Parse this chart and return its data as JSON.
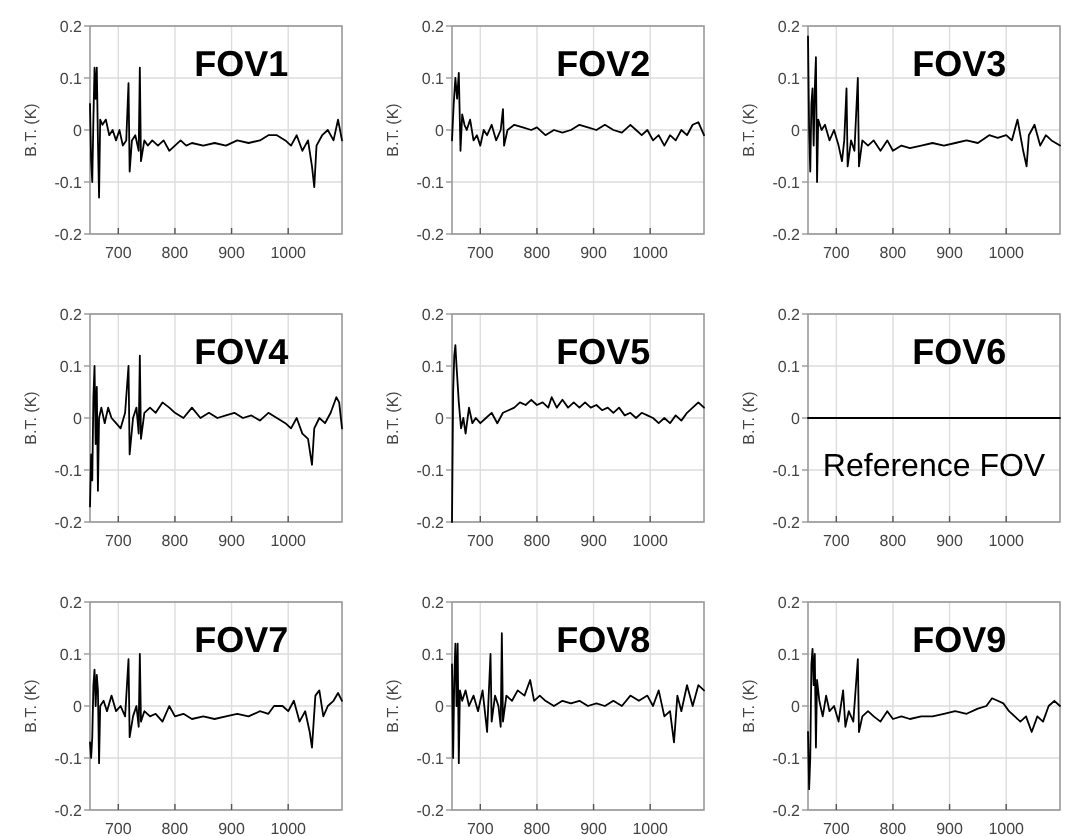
{
  "chart_data": [
    {
      "type": "line",
      "title": "FOV1",
      "ylabel": "B.T. (K)",
      "xlim": [
        650,
        1095
      ],
      "xticks": [
        700,
        800,
        900,
        1000
      ],
      "ylim": [
        -0.2,
        0.2
      ],
      "yticks": [
        -0.2,
        -0.1,
        0,
        0.1,
        0.2
      ],
      "grid": true,
      "series": [
        {
          "color": "#000000",
          "x": [
            650,
            652,
            654,
            656,
            658,
            660,
            662,
            664,
            666,
            668,
            672,
            678,
            684,
            690,
            696,
            702,
            708,
            714,
            718,
            720,
            724,
            730,
            736,
            738,
            740,
            746,
            752,
            760,
            770,
            780,
            790,
            800,
            810,
            820,
            830,
            850,
            870,
            890,
            910,
            930,
            950,
            965,
            980,
            995,
            1005,
            1015,
            1025,
            1035,
            1042,
            1046,
            1050,
            1060,
            1070,
            1080,
            1088,
            1095
          ],
          "values": [
            0.05,
            -0.06,
            -0.1,
            0.02,
            0.12,
            0.06,
            0.12,
            -0.02,
            -0.13,
            0.02,
            0.01,
            0.02,
            -0.01,
            0,
            -0.02,
            0,
            -0.03,
            -0.02,
            0.09,
            -0.08,
            -0.02,
            -0.01,
            -0.04,
            0.12,
            -0.06,
            -0.02,
            -0.03,
            -0.02,
            -0.03,
            -0.02,
            -0.04,
            -0.03,
            -0.02,
            -0.03,
            -0.025,
            -0.03,
            -0.025,
            -0.03,
            -0.02,
            -0.025,
            -0.02,
            -0.01,
            -0.01,
            -0.02,
            -0.03,
            -0.01,
            -0.04,
            -0.02,
            -0.07,
            -0.11,
            -0.03,
            -0.01,
            0,
            -0.02,
            0.02,
            -0.02
          ]
        }
      ]
    },
    {
      "type": "line",
      "title": "FOV2",
      "ylabel": "B.T. (K)",
      "xlim": [
        650,
        1095
      ],
      "xticks": [
        700,
        800,
        900,
        1000
      ],
      "ylim": [
        -0.2,
        0.2
      ],
      "yticks": [
        -0.2,
        -0.1,
        0,
        0.1,
        0.2
      ],
      "grid": true,
      "series": [
        {
          "color": "#000000",
          "x": [
            650,
            653,
            656,
            659,
            662,
            665,
            668,
            672,
            676,
            682,
            688,
            694,
            700,
            706,
            712,
            720,
            728,
            736,
            740,
            742,
            748,
            760,
            775,
            790,
            800,
            815,
            830,
            845,
            860,
            875,
            890,
            905,
            920,
            935,
            950,
            965,
            975,
            985,
            995,
            1005,
            1015,
            1025,
            1035,
            1045,
            1055,
            1065,
            1075,
            1085,
            1095
          ],
          "values": [
            -0.02,
            0.05,
            0.1,
            0.06,
            0.11,
            -0.04,
            0.03,
            0.01,
            0,
            0.02,
            -0.02,
            -0.01,
            -0.03,
            0,
            -0.01,
            0.01,
            -0.02,
            0,
            0.04,
            -0.03,
            0,
            0.01,
            0.005,
            0,
            0.005,
            -0.01,
            0,
            -0.005,
            0,
            0.01,
            0.005,
            0,
            0.01,
            0,
            -0.005,
            0.01,
            0,
            -0.01,
            0,
            -0.02,
            -0.01,
            -0.03,
            -0.01,
            -0.02,
            0,
            -0.01,
            0.01,
            0.015,
            -0.01
          ]
        }
      ]
    },
    {
      "type": "line",
      "title": "FOV3",
      "ylabel": "B.T. (K)",
      "xlim": [
        650,
        1095
      ],
      "xticks": [
        700,
        800,
        900,
        1000
      ],
      "ylim": [
        -0.2,
        0.2
      ],
      "yticks": [
        -0.2,
        -0.1,
        0,
        0.1,
        0.2
      ],
      "grid": true,
      "series": [
        {
          "color": "#000000",
          "x": [
            650,
            652,
            654,
            656,
            658,
            660,
            662,
            664,
            666,
            668,
            674,
            680,
            688,
            696,
            704,
            710,
            714,
            718,
            720,
            726,
            732,
            738,
            740,
            746,
            756,
            766,
            778,
            790,
            800,
            815,
            830,
            850,
            870,
            890,
            910,
            930,
            950,
            970,
            985,
            1000,
            1010,
            1020,
            1030,
            1036,
            1040,
            1050,
            1060,
            1070,
            1080,
            1095
          ],
          "values": [
            0.18,
            0,
            -0.08,
            0.05,
            0.08,
            -0.03,
            0.08,
            0.14,
            -0.1,
            0.02,
            0,
            0.01,
            -0.02,
            0,
            -0.03,
            -0.06,
            -0.02,
            0.08,
            -0.07,
            -0.02,
            -0.04,
            0.1,
            -0.07,
            -0.02,
            -0.03,
            -0.02,
            -0.04,
            -0.02,
            -0.04,
            -0.03,
            -0.035,
            -0.03,
            -0.025,
            -0.03,
            -0.025,
            -0.02,
            -0.025,
            -0.01,
            -0.015,
            -0.01,
            -0.02,
            0.02,
            -0.04,
            -0.07,
            -0.01,
            0.01,
            -0.03,
            -0.01,
            -0.02,
            -0.03
          ]
        }
      ]
    },
    {
      "type": "line",
      "title": "FOV4",
      "ylabel": "B.T. (K)",
      "xlim": [
        650,
        1095
      ],
      "xticks": [
        700,
        800,
        900,
        1000
      ],
      "ylim": [
        -0.2,
        0.2
      ],
      "yticks": [
        -0.2,
        -0.1,
        0,
        0.1,
        0.2
      ],
      "grid": true,
      "series": [
        {
          "color": "#000000",
          "x": [
            650,
            652,
            654,
            656,
            658,
            660,
            662,
            664,
            666,
            670,
            676,
            682,
            688,
            696,
            704,
            712,
            718,
            720,
            726,
            732,
            736,
            738,
            740,
            746,
            756,
            766,
            778,
            790,
            800,
            815,
            830,
            845,
            860,
            875,
            890,
            905,
            920,
            935,
            950,
            965,
            980,
            995,
            1005,
            1015,
            1025,
            1035,
            1042,
            1046,
            1055,
            1065,
            1075,
            1085,
            1090,
            1095
          ],
          "values": [
            -0.17,
            -0.07,
            -0.12,
            0.04,
            0.1,
            -0.05,
            0.06,
            -0.14,
            0,
            0.02,
            -0.01,
            0.02,
            0,
            -0.01,
            -0.02,
            0.01,
            0.1,
            -0.07,
            0,
            0.02,
            -0.03,
            0.12,
            -0.04,
            0.01,
            0.02,
            0.01,
            0.03,
            0.02,
            0.01,
            0,
            0.02,
            0,
            0.01,
            0,
            0.005,
            0.01,
            0,
            0.005,
            -0.005,
            0.01,
            0,
            -0.01,
            -0.02,
            0,
            -0.03,
            -0.04,
            -0.09,
            -0.02,
            0,
            -0.01,
            0.01,
            0.04,
            0.03,
            -0.02
          ]
        }
      ]
    },
    {
      "type": "line",
      "title": "FOV5",
      "ylabel": "B.T. (K)",
      "xlim": [
        650,
        1095
      ],
      "xticks": [
        700,
        800,
        900,
        1000
      ],
      "ylim": [
        -0.2,
        0.2
      ],
      "yticks": [
        -0.2,
        -0.1,
        0,
        0.1,
        0.2
      ],
      "grid": true,
      "series": [
        {
          "color": "#000000",
          "x": [
            650,
            652,
            654,
            656,
            658,
            662,
            666,
            670,
            674,
            680,
            686,
            692,
            700,
            710,
            720,
            730,
            740,
            750,
            760,
            770,
            780,
            790,
            800,
            810,
            820,
            826,
            835,
            845,
            855,
            865,
            875,
            885,
            895,
            905,
            915,
            925,
            935,
            945,
            955,
            965,
            975,
            985,
            995,
            1005,
            1015,
            1025,
            1035,
            1045,
            1055,
            1065,
            1075,
            1085,
            1095
          ],
          "values": [
            -0.2,
            0.05,
            0.12,
            0.14,
            0.1,
            0.03,
            -0.02,
            0,
            -0.03,
            0.02,
            -0.01,
            0,
            -0.01,
            0,
            0.01,
            -0.01,
            0.01,
            0.015,
            0.02,
            0.03,
            0.025,
            0.035,
            0.025,
            0.03,
            0.02,
            0.04,
            0.02,
            0.035,
            0.02,
            0.03,
            0.02,
            0.03,
            0.02,
            0.025,
            0.015,
            0.02,
            0.01,
            0.02,
            0.005,
            0.01,
            0,
            0.01,
            0.005,
            0,
            -0.01,
            0,
            -0.01,
            0.005,
            -0.005,
            0.01,
            0.02,
            0.03,
            0.02
          ]
        }
      ]
    },
    {
      "type": "line",
      "title": "FOV6",
      "ylabel": "B.T. (K)",
      "xlim": [
        650,
        1095
      ],
      "xticks": [
        700,
        800,
        900,
        1000
      ],
      "ylim": [
        -0.2,
        0.2
      ],
      "yticks": [
        -0.2,
        -0.1,
        0,
        0.1,
        0.2
      ],
      "grid": true,
      "annotations": [
        "Reference FOV"
      ],
      "series": [
        {
          "color": "#000000",
          "x": [
            650,
            1095
          ],
          "values": [
            0,
            0
          ]
        }
      ]
    },
    {
      "type": "line",
      "title": "FOV7",
      "ylabel": "B.T. (K)",
      "xlim": [
        650,
        1095
      ],
      "xticks": [
        700,
        800,
        900,
        1000
      ],
      "ylim": [
        -0.2,
        0.2
      ],
      "yticks": [
        -0.2,
        -0.1,
        0,
        0.1,
        0.2
      ],
      "grid": true,
      "series": [
        {
          "color": "#000000",
          "x": [
            650,
            652,
            654,
            656,
            658,
            660,
            662,
            664,
            666,
            668,
            674,
            680,
            688,
            696,
            704,
            712,
            718,
            720,
            726,
            732,
            736,
            738,
            740,
            746,
            756,
            766,
            778,
            790,
            800,
            815,
            830,
            850,
            870,
            890,
            910,
            930,
            950,
            965,
            975,
            990,
            1000,
            1010,
            1020,
            1030,
            1038,
            1042,
            1048,
            1055,
            1062,
            1070,
            1080,
            1088,
            1095
          ],
          "values": [
            -0.07,
            -0.1,
            -0.06,
            0.04,
            0.07,
            0,
            0.06,
            0.03,
            -0.11,
            0,
            0.01,
            -0.01,
            0.02,
            -0.01,
            0,
            -0.02,
            0.09,
            -0.06,
            -0.02,
            0,
            -0.04,
            0.1,
            -0.03,
            -0.01,
            -0.02,
            -0.015,
            -0.03,
            0,
            -0.02,
            -0.015,
            -0.025,
            -0.02,
            -0.025,
            -0.02,
            -0.015,
            -0.02,
            -0.01,
            -0.015,
            0,
            0,
            -0.01,
            0.01,
            -0.03,
            -0.01,
            -0.05,
            -0.08,
            0.02,
            0.03,
            -0.02,
            0,
            0.01,
            0.025,
            0.01
          ]
        }
      ]
    },
    {
      "type": "line",
      "title": "FOV8",
      "ylabel": "B.T. (K)",
      "xlim": [
        650,
        1095
      ],
      "xticks": [
        700,
        800,
        900,
        1000
      ],
      "ylim": [
        -0.2,
        0.2
      ],
      "yticks": [
        -0.2,
        -0.1,
        0,
        0.1,
        0.2
      ],
      "grid": true,
      "series": [
        {
          "color": "#000000",
          "x": [
            650,
            652,
            654,
            656,
            658,
            660,
            662,
            664,
            668,
            674,
            680,
            688,
            696,
            704,
            712,
            718,
            720,
            726,
            732,
            736,
            738,
            740,
            746,
            756,
            766,
            778,
            788,
            795,
            805,
            815,
            830,
            845,
            860,
            875,
            890,
            905,
            920,
            935,
            950,
            965,
            980,
            995,
            1005,
            1015,
            1025,
            1035,
            1042,
            1048,
            1055,
            1065,
            1075,
            1085,
            1095
          ],
          "values": [
            0.08,
            -0.1,
            0.05,
            0.12,
            0,
            0.12,
            -0.11,
            0.03,
            0.01,
            0.03,
            0,
            0.02,
            -0.01,
            0.03,
            -0.05,
            0.1,
            -0.03,
            0.02,
            0,
            -0.04,
            0.14,
            -0.03,
            0.02,
            0.01,
            0.03,
            0.02,
            0.05,
            0.01,
            0.02,
            0.01,
            0,
            0.01,
            0.005,
            0.01,
            0,
            0.005,
            0,
            0.01,
            0,
            0.02,
            0.01,
            0.02,
            0,
            0.03,
            -0.02,
            -0.01,
            -0.07,
            0.02,
            -0.01,
            0.04,
            0,
            0.04,
            0.03
          ]
        }
      ]
    },
    {
      "type": "line",
      "title": "FOV9",
      "ylabel": "B.T. (K)",
      "xlim": [
        650,
        1095
      ],
      "xticks": [
        700,
        800,
        900,
        1000
      ],
      "ylim": [
        -0.2,
        0.2
      ],
      "yticks": [
        -0.2,
        -0.1,
        0,
        0.1,
        0.2
      ],
      "grid": true,
      "series": [
        {
          "color": "#000000",
          "x": [
            650,
            652,
            654,
            656,
            658,
            660,
            662,
            664,
            666,
            670,
            676,
            682,
            688,
            696,
            704,
            712,
            716,
            722,
            730,
            738,
            740,
            746,
            756,
            766,
            778,
            790,
            800,
            815,
            830,
            850,
            870,
            890,
            910,
            930,
            950,
            965,
            975,
            985,
            995,
            1005,
            1015,
            1025,
            1035,
            1045,
            1055,
            1065,
            1075,
            1085,
            1095
          ],
          "values": [
            -0.05,
            -0.16,
            -0.1,
            0.08,
            0.11,
            0.04,
            0.1,
            -0.08,
            0.05,
            0.01,
            -0.02,
            0.02,
            -0.01,
            0,
            -0.03,
            0.03,
            -0.04,
            -0.01,
            -0.03,
            0.09,
            -0.05,
            -0.02,
            -0.01,
            -0.02,
            -0.03,
            -0.01,
            -0.025,
            -0.02,
            -0.025,
            -0.02,
            -0.02,
            -0.015,
            -0.01,
            -0.015,
            -0.005,
            0,
            0.015,
            0.01,
            0.005,
            -0.01,
            -0.02,
            -0.03,
            -0.02,
            -0.05,
            -0.02,
            -0.03,
            0,
            0.01,
            0
          ]
        }
      ]
    }
  ]
}
